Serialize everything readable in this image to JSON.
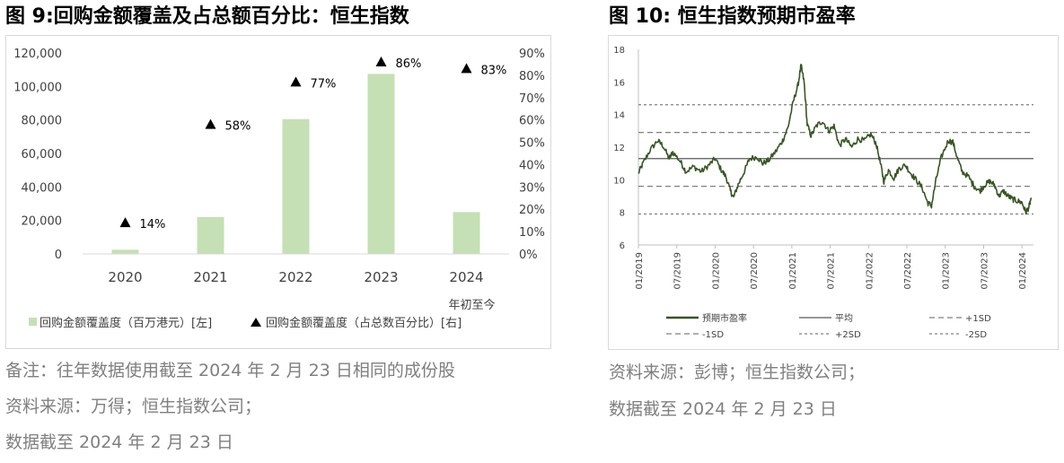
{
  "fig9": {
    "title": "图 9:回购金额覆盖及占总额百分比：恒生指数",
    "notes": [
      "备注：往年数据使用截至 2024 年 2 月 23 日相同的成份股",
      "资料来源：万得；恒生指数公司；",
      "数据截至  2024 年 2 月 23 日"
    ]
  },
  "fig10": {
    "title": "图 10:  恒生指数预期市盈率",
    "notes": [
      "资料来源：彭博；恒生指数公司；",
      "数据截至  2024 年 2 月 23 日"
    ]
  },
  "chart_data": [
    {
      "type": "bar",
      "categories": [
        "2020",
        "2021",
        "2022",
        "2023",
        "2024\n年初至今"
      ],
      "series": [
        {
          "name": "回购金额覆盖度（百万港元）[左]",
          "type": "bar",
          "axis": "left",
          "values": [
            2500,
            22000,
            80500,
            107500,
            25000
          ],
          "color": "#c5e0b4"
        },
        {
          "name": "回购金额覆盖度（占总数百分比）[右]",
          "type": "marker",
          "axis": "right",
          "values": [
            14,
            58,
            77,
            86,
            83
          ],
          "labels": [
            "14%",
            "58%",
            "77%",
            "86%",
            "83%"
          ],
          "color": "#000000"
        }
      ],
      "left_ticks": [
        "0",
        "20,000",
        "40,000",
        "60,000",
        "80,000",
        "100,000",
        "120,000"
      ],
      "right_ticks": [
        "0%",
        "10%",
        "20%",
        "30%",
        "40%",
        "50%",
        "60%",
        "70%",
        "80%",
        "90%"
      ],
      "ylim_left": [
        0,
        120000
      ],
      "ylim_right": [
        0,
        90
      ],
      "legend_position": "bottom",
      "grid": false
    },
    {
      "type": "line",
      "x_ticks": [
        "01/2019",
        "07/2019",
        "01/2020",
        "07/2020",
        "01/2021",
        "07/2021",
        "01/2022",
        "07/2022",
        "01/2023",
        "07/2023",
        "01/2024"
      ],
      "x_range": [
        "2019-01",
        "2024-02"
      ],
      "ylim": [
        6,
        18
      ],
      "y_ticks": [
        "6",
        "8",
        "10",
        "12",
        "14",
        "16",
        "18"
      ],
      "series": [
        {
          "name": "预期市盈率",
          "color": "#375623",
          "anchors": [
            [
              2019.0,
              10.4
            ],
            [
              2019.06,
              11.0
            ],
            [
              2019.15,
              11.8
            ],
            [
              2019.25,
              12.4
            ],
            [
              2019.32,
              12.1
            ],
            [
              2019.4,
              11.3
            ],
            [
              2019.45,
              11.7
            ],
            [
              2019.55,
              11.1
            ],
            [
              2019.62,
              10.5
            ],
            [
              2019.72,
              10.8
            ],
            [
              2019.82,
              10.5
            ],
            [
              2019.92,
              10.9
            ],
            [
              2020.0,
              11.3
            ],
            [
              2020.08,
              10.6
            ],
            [
              2020.14,
              10.2
            ],
            [
              2020.2,
              9.3
            ],
            [
              2020.24,
              8.9
            ],
            [
              2020.3,
              9.7
            ],
            [
              2020.38,
              10.5
            ],
            [
              2020.45,
              11.3
            ],
            [
              2020.55,
              11.4
            ],
            [
              2020.62,
              11.0
            ],
            [
              2020.7,
              11.2
            ],
            [
              2020.8,
              11.8
            ],
            [
              2020.88,
              12.4
            ],
            [
              2020.95,
              13.2
            ],
            [
              2021.02,
              14.8
            ],
            [
              2021.08,
              15.8
            ],
            [
              2021.12,
              17.0
            ],
            [
              2021.16,
              16.0
            ],
            [
              2021.2,
              13.4
            ],
            [
              2021.25,
              12.7
            ],
            [
              2021.32,
              13.3
            ],
            [
              2021.4,
              13.6
            ],
            [
              2021.48,
              13.0
            ],
            [
              2021.55,
              13.3
            ],
            [
              2021.62,
              12.1
            ],
            [
              2021.7,
              12.5
            ],
            [
              2021.78,
              12.0
            ],
            [
              2021.86,
              12.5
            ],
            [
              2021.95,
              12.4
            ],
            [
              2022.03,
              12.8
            ],
            [
              2022.1,
              12.2
            ],
            [
              2022.16,
              10.9
            ],
            [
              2022.2,
              9.9
            ],
            [
              2022.26,
              10.6
            ],
            [
              2022.33,
              10.1
            ],
            [
              2022.4,
              10.7
            ],
            [
              2022.48,
              10.9
            ],
            [
              2022.55,
              10.4
            ],
            [
              2022.62,
              10.0
            ],
            [
              2022.7,
              9.5
            ],
            [
              2022.77,
              8.6
            ],
            [
              2022.82,
              8.4
            ],
            [
              2022.88,
              10.0
            ],
            [
              2022.95,
              11.4
            ],
            [
              2023.04,
              12.4
            ],
            [
              2023.1,
              12.3
            ],
            [
              2023.16,
              11.3
            ],
            [
              2023.22,
              10.5
            ],
            [
              2023.3,
              10.2
            ],
            [
              2023.38,
              9.6
            ],
            [
              2023.45,
              9.3
            ],
            [
              2023.52,
              9.7
            ],
            [
              2023.58,
              9.9
            ],
            [
              2023.64,
              9.7
            ],
            [
              2023.7,
              9.0
            ],
            [
              2023.76,
              9.3
            ],
            [
              2023.82,
              9.0
            ],
            [
              2023.88,
              8.8
            ],
            [
              2023.94,
              8.7
            ],
            [
              2024.0,
              8.6
            ],
            [
              2024.05,
              8.0
            ],
            [
              2024.09,
              8.3
            ],
            [
              2024.12,
              8.9
            ]
          ]
        },
        {
          "name": "平均",
          "value": 11.3,
          "color": "#595959"
        },
        {
          "name": "+1SD",
          "value": 12.9,
          "color": "#7f7f7f"
        },
        {
          "name": "-1SD",
          "value": 9.6,
          "color": "#7f7f7f"
        },
        {
          "name": "+2SD",
          "value": 14.6,
          "color": "#7f7f7f"
        },
        {
          "name": "-2SD",
          "value": 7.9,
          "color": "#7f7f7f"
        }
      ],
      "legend_position": "bottom",
      "grid": false
    }
  ]
}
